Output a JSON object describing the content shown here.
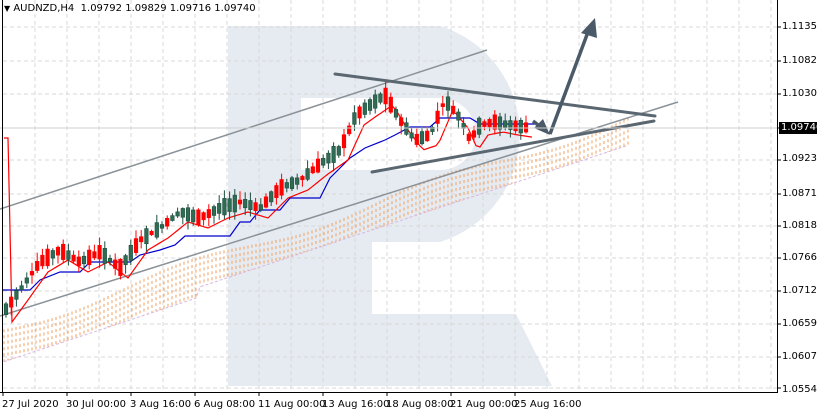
{
  "header": {
    "symbol": "AUDNZD,H4",
    "open": "1.09792",
    "high": "1.09829",
    "low": "1.09716",
    "close": "1.09740",
    "menu_icon": "triangle-down-icon"
  },
  "y_axis": {
    "labels": [
      "1.11350",
      "1.10825",
      "1.10300",
      "1.09740",
      "1.09235",
      "1.08710",
      "1.08185",
      "1.07660",
      "1.07120",
      "1.06595",
      "1.06070",
      "1.05545"
    ],
    "current_price": "1.09740"
  },
  "x_axis": {
    "labels": [
      "27 Jul 2020",
      "30 Jul 00:00",
      "3 Aug 16:00",
      "6 Aug 08:00",
      "11 Aug 00:00",
      "13 Aug 16:00",
      "18 Aug 08:00",
      "21 Aug 00:00",
      "25 Aug 16:00"
    ]
  },
  "colors": {
    "bull_candle": "#2f6b55",
    "bear_candle": "#ff0000",
    "tenkan": "#ff0000",
    "kijun": "#0000cc",
    "cloud": "#f0a060",
    "trendline": "#5a6670",
    "channel": "#8a9298",
    "watermark": "#e6ebf2",
    "grid": "#d8d8d8"
  },
  "chart_data": {
    "type": "candlestick",
    "title": "AUDNZD, H4",
    "subtitle": "O 1.09792 H 1.09829 L 1.09716 C 1.09740",
    "xlabel": "",
    "ylabel": "",
    "ylim": [
      1.05545,
      1.116
    ],
    "y_ticks": [
      1.1135,
      1.10825,
      1.103,
      1.0974,
      1.09235,
      1.0871,
      1.08185,
      1.0766,
      1.0712,
      1.06595,
      1.0607,
      1.05545
    ],
    "x_ticks": [
      "27 Jul 2020",
      "30 Jul 00:00",
      "3 Aug 16:00",
      "6 Aug 08:00",
      "11 Aug 00:00",
      "13 Aug 16:00",
      "18 Aug 08:00",
      "21 Aug 00:00",
      "25 Aug 16:00"
    ],
    "grid": true,
    "indicators": [
      "Ichimoku Kinko Hyo (Tenkan-sen red, Kijun-sen blue, Kumo cloud orange hatched)"
    ],
    "annotations": [
      "Ascending channel (thin gray parallel lines)",
      "Triangle pattern: descending resistance line ~1.1070 -> 1.0985 and rising support line ~1.0905 -> 1.0980",
      "Forecast arrow: small decline toward ~1.0965 then strong rise toward ~1.1140",
      "Current price 1.09740"
    ],
    "series": [
      {
        "name": "close_approx",
        "x": [
          "27 Jul",
          "30 Jul",
          "3 Aug",
          "6 Aug",
          "11 Aug",
          "13 Aug",
          "18 Aug",
          "21 Aug",
          "25 Aug",
          "26 Aug"
        ],
        "values": [
          1.0675,
          1.079,
          1.077,
          1.081,
          1.0845,
          1.093,
          1.097,
          1.101,
          1.0975,
          1.0974
        ]
      }
    ]
  }
}
